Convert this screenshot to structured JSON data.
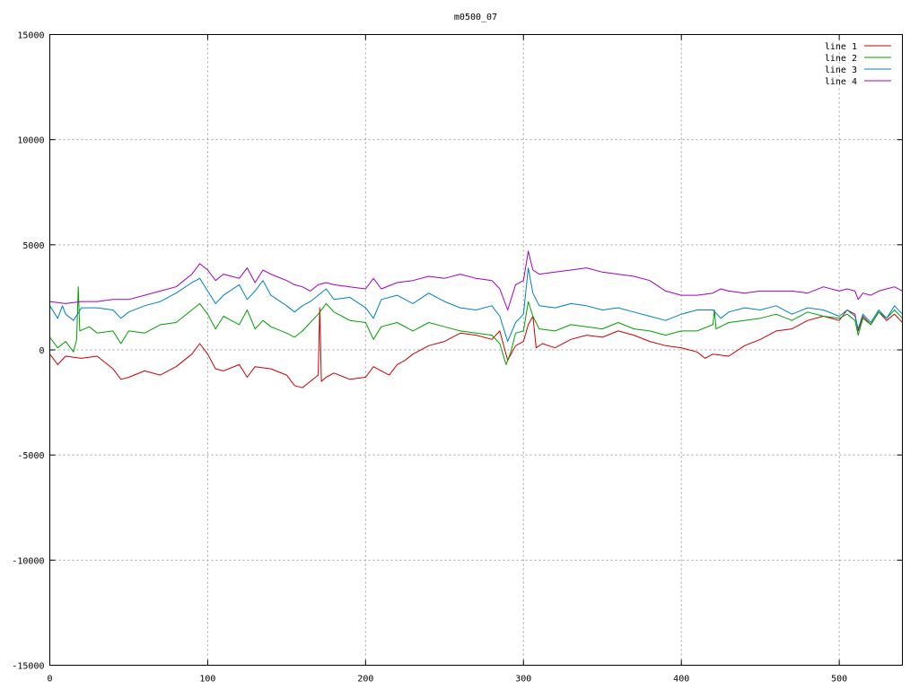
{
  "chart_data": {
    "type": "line",
    "title": "m0500_07",
    "xlabel": "",
    "ylabel": "",
    "xlim": [
      0,
      540
    ],
    "ylim": [
      -15000,
      15000
    ],
    "x_ticks": [
      0,
      100,
      200,
      300,
      400,
      500
    ],
    "y_ticks": [
      -15000,
      -10000,
      -5000,
      0,
      5000,
      10000,
      15000
    ],
    "grid": true,
    "legend_position": "top-right",
    "series": [
      {
        "name": "line 1",
        "color": "#cc0000",
        "points": [
          [
            0,
            -200
          ],
          [
            5,
            -700
          ],
          [
            10,
            -300
          ],
          [
            20,
            -400
          ],
          [
            30,
            -300
          ],
          [
            40,
            -900
          ],
          [
            45,
            -1400
          ],
          [
            50,
            -1300
          ],
          [
            60,
            -1000
          ],
          [
            70,
            -1200
          ],
          [
            80,
            -800
          ],
          [
            90,
            -200
          ],
          [
            95,
            300
          ],
          [
            100,
            -200
          ],
          [
            105,
            -900
          ],
          [
            110,
            -1000
          ],
          [
            120,
            -700
          ],
          [
            125,
            -1300
          ],
          [
            130,
            -800
          ],
          [
            140,
            -900
          ],
          [
            150,
            -1200
          ],
          [
            155,
            -1700
          ],
          [
            160,
            -1800
          ],
          [
            165,
            -1500
          ],
          [
            170,
            -1200
          ],
          [
            171,
            2000
          ],
          [
            172,
            -1500
          ],
          [
            175,
            -1300
          ],
          [
            180,
            -1100
          ],
          [
            190,
            -1400
          ],
          [
            200,
            -1300
          ],
          [
            205,
            -800
          ],
          [
            210,
            -1000
          ],
          [
            215,
            -1200
          ],
          [
            220,
            -700
          ],
          [
            225,
            -500
          ],
          [
            230,
            -200
          ],
          [
            240,
            200
          ],
          [
            250,
            400
          ],
          [
            260,
            800
          ],
          [
            270,
            700
          ],
          [
            280,
            500
          ],
          [
            285,
            900
          ],
          [
            290,
            -500
          ],
          [
            295,
            200
          ],
          [
            300,
            400
          ],
          [
            303,
            1200
          ],
          [
            306,
            1600
          ],
          [
            308,
            100
          ],
          [
            312,
            300
          ],
          [
            320,
            100
          ],
          [
            330,
            500
          ],
          [
            340,
            700
          ],
          [
            350,
            600
          ],
          [
            360,
            900
          ],
          [
            370,
            700
          ],
          [
            380,
            400
          ],
          [
            390,
            200
          ],
          [
            400,
            100
          ],
          [
            410,
            -100
          ],
          [
            415,
            -400
          ],
          [
            420,
            -200
          ],
          [
            430,
            -300
          ],
          [
            440,
            200
          ],
          [
            450,
            500
          ],
          [
            460,
            900
          ],
          [
            470,
            1000
          ],
          [
            480,
            1400
          ],
          [
            490,
            1600
          ],
          [
            500,
            1400
          ],
          [
            505,
            1900
          ],
          [
            510,
            1700
          ],
          [
            512,
            900
          ],
          [
            515,
            1600
          ],
          [
            520,
            1200
          ],
          [
            525,
            1800
          ],
          [
            530,
            1400
          ],
          [
            535,
            1700
          ],
          [
            540,
            1300
          ]
        ]
      },
      {
        "name": "line 2",
        "color": "#00a000",
        "points": [
          [
            0,
            600
          ],
          [
            5,
            100
          ],
          [
            10,
            400
          ],
          [
            15,
            -100
          ],
          [
            17,
            500
          ],
          [
            18,
            3000
          ],
          [
            19,
            900
          ],
          [
            25,
            1100
          ],
          [
            30,
            800
          ],
          [
            40,
            900
          ],
          [
            45,
            300
          ],
          [
            50,
            900
          ],
          [
            60,
            800
          ],
          [
            70,
            1200
          ],
          [
            80,
            1300
          ],
          [
            90,
            1900
          ],
          [
            95,
            2200
          ],
          [
            100,
            1700
          ],
          [
            105,
            1000
          ],
          [
            110,
            1600
          ],
          [
            120,
            1200
          ],
          [
            125,
            1900
          ],
          [
            130,
            1000
          ],
          [
            135,
            1400
          ],
          [
            140,
            1100
          ],
          [
            150,
            800
          ],
          [
            155,
            600
          ],
          [
            160,
            900
          ],
          [
            165,
            1300
          ],
          [
            170,
            1700
          ],
          [
            175,
            2200
          ],
          [
            180,
            1800
          ],
          [
            190,
            1400
          ],
          [
            200,
            1300
          ],
          [
            205,
            500
          ],
          [
            210,
            1100
          ],
          [
            220,
            1300
          ],
          [
            230,
            900
          ],
          [
            240,
            1300
          ],
          [
            250,
            1100
          ],
          [
            260,
            900
          ],
          [
            270,
            800
          ],
          [
            280,
            700
          ],
          [
            285,
            300
          ],
          [
            289,
            -700
          ],
          [
            292,
            -100
          ],
          [
            295,
            800
          ],
          [
            300,
            900
          ],
          [
            303,
            2300
          ],
          [
            306,
            1600
          ],
          [
            310,
            1000
          ],
          [
            320,
            900
          ],
          [
            330,
            1200
          ],
          [
            340,
            1100
          ],
          [
            350,
            1000
          ],
          [
            360,
            1300
          ],
          [
            370,
            1000
          ],
          [
            380,
            900
          ],
          [
            390,
            700
          ],
          [
            400,
            900
          ],
          [
            410,
            900
          ],
          [
            420,
            1200
          ],
          [
            421,
            1900
          ],
          [
            422,
            1000
          ],
          [
            430,
            1300
          ],
          [
            440,
            1400
          ],
          [
            450,
            1500
          ],
          [
            460,
            1700
          ],
          [
            470,
            1400
          ],
          [
            480,
            1800
          ],
          [
            490,
            1600
          ],
          [
            500,
            1500
          ],
          [
            505,
            1700
          ],
          [
            510,
            1400
          ],
          [
            512,
            700
          ],
          [
            515,
            1500
          ],
          [
            520,
            1200
          ],
          [
            525,
            1800
          ],
          [
            530,
            1500
          ],
          [
            535,
            1900
          ],
          [
            540,
            1500
          ]
        ]
      },
      {
        "name": "line 3",
        "color": "#0080c0",
        "points": [
          [
            0,
            2100
          ],
          [
            5,
            1500
          ],
          [
            8,
            2100
          ],
          [
            10,
            1700
          ],
          [
            15,
            1400
          ],
          [
            20,
            2000
          ],
          [
            30,
            2000
          ],
          [
            40,
            1900
          ],
          [
            45,
            1500
          ],
          [
            50,
            1800
          ],
          [
            60,
            2100
          ],
          [
            70,
            2300
          ],
          [
            80,
            2700
          ],
          [
            90,
            3200
          ],
          [
            95,
            3400
          ],
          [
            100,
            2800
          ],
          [
            105,
            2200
          ],
          [
            110,
            2600
          ],
          [
            120,
            3100
          ],
          [
            125,
            2400
          ],
          [
            130,
            2800
          ],
          [
            135,
            3300
          ],
          [
            140,
            2600
          ],
          [
            150,
            2100
          ],
          [
            155,
            1800
          ],
          [
            160,
            2100
          ],
          [
            165,
            2300
          ],
          [
            170,
            2600
          ],
          [
            175,
            2900
          ],
          [
            180,
            2400
          ],
          [
            190,
            2500
          ],
          [
            200,
            2000
          ],
          [
            205,
            1500
          ],
          [
            210,
            2400
          ],
          [
            220,
            2600
          ],
          [
            230,
            2200
          ],
          [
            240,
            2700
          ],
          [
            250,
            2300
          ],
          [
            260,
            2000
          ],
          [
            270,
            1900
          ],
          [
            280,
            2100
          ],
          [
            285,
            1600
          ],
          [
            290,
            400
          ],
          [
            295,
            1300
          ],
          [
            300,
            1700
          ],
          [
            303,
            3900
          ],
          [
            306,
            2700
          ],
          [
            310,
            2100
          ],
          [
            320,
            2000
          ],
          [
            330,
            2200
          ],
          [
            340,
            2100
          ],
          [
            350,
            1900
          ],
          [
            360,
            2000
          ],
          [
            370,
            1800
          ],
          [
            380,
            1600
          ],
          [
            390,
            1400
          ],
          [
            400,
            1700
          ],
          [
            410,
            1900
          ],
          [
            420,
            1900
          ],
          [
            425,
            1500
          ],
          [
            430,
            1800
          ],
          [
            440,
            2000
          ],
          [
            450,
            1900
          ],
          [
            460,
            2100
          ],
          [
            470,
            1700
          ],
          [
            480,
            2000
          ],
          [
            490,
            1900
          ],
          [
            500,
            1600
          ],
          [
            505,
            1900
          ],
          [
            510,
            1600
          ],
          [
            512,
            1000
          ],
          [
            515,
            1700
          ],
          [
            520,
            1300
          ],
          [
            525,
            1900
          ],
          [
            530,
            1500
          ],
          [
            535,
            2100
          ],
          [
            540,
            1700
          ]
        ]
      },
      {
        "name": "line 4",
        "color": "#a000c0",
        "points": [
          [
            0,
            2300
          ],
          [
            10,
            2200
          ],
          [
            20,
            2300
          ],
          [
            30,
            2300
          ],
          [
            40,
            2400
          ],
          [
            50,
            2400
          ],
          [
            60,
            2600
          ],
          [
            70,
            2800
          ],
          [
            80,
            3000
          ],
          [
            90,
            3600
          ],
          [
            95,
            4100
          ],
          [
            100,
            3800
          ],
          [
            105,
            3300
          ],
          [
            110,
            3600
          ],
          [
            120,
            3400
          ],
          [
            125,
            3900
          ],
          [
            130,
            3200
          ],
          [
            135,
            3800
          ],
          [
            140,
            3600
          ],
          [
            150,
            3300
          ],
          [
            155,
            3100
          ],
          [
            160,
            3000
          ],
          [
            165,
            2800
          ],
          [
            170,
            3100
          ],
          [
            175,
            3200
          ],
          [
            180,
            3100
          ],
          [
            190,
            3000
          ],
          [
            200,
            2900
          ],
          [
            205,
            3400
          ],
          [
            210,
            2900
          ],
          [
            220,
            3200
          ],
          [
            230,
            3300
          ],
          [
            240,
            3500
          ],
          [
            250,
            3400
          ],
          [
            260,
            3600
          ],
          [
            270,
            3400
          ],
          [
            280,
            3300
          ],
          [
            285,
            2900
          ],
          [
            290,
            1900
          ],
          [
            295,
            3100
          ],
          [
            300,
            3300
          ],
          [
            303,
            4700
          ],
          [
            306,
            3800
          ],
          [
            310,
            3600
          ],
          [
            320,
            3700
          ],
          [
            330,
            3800
          ],
          [
            340,
            3900
          ],
          [
            350,
            3700
          ],
          [
            360,
            3600
          ],
          [
            370,
            3500
          ],
          [
            380,
            3300
          ],
          [
            390,
            2800
          ],
          [
            400,
            2600
          ],
          [
            410,
            2600
          ],
          [
            420,
            2700
          ],
          [
            425,
            2900
          ],
          [
            430,
            2800
          ],
          [
            440,
            2700
          ],
          [
            450,
            2800
          ],
          [
            460,
            2800
          ],
          [
            470,
            2800
          ],
          [
            480,
            2700
          ],
          [
            490,
            3000
          ],
          [
            500,
            2800
          ],
          [
            505,
            2900
          ],
          [
            510,
            2800
          ],
          [
            512,
            2400
          ],
          [
            515,
            2700
          ],
          [
            520,
            2600
          ],
          [
            525,
            2800
          ],
          [
            530,
            2900
          ],
          [
            535,
            3000
          ],
          [
            540,
            2800
          ]
        ]
      }
    ]
  }
}
